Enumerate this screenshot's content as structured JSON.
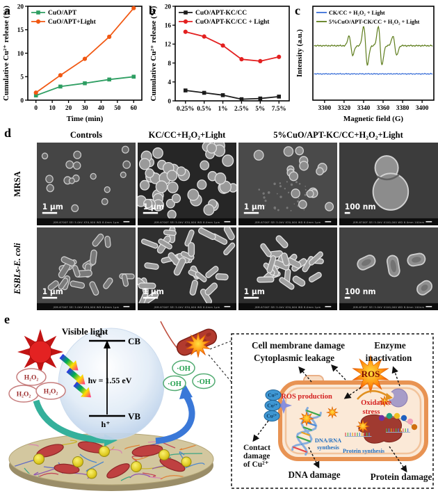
{
  "figure": {
    "panel_labels": {
      "a": "a",
      "b": "b",
      "c": "c",
      "d": "d",
      "e": "e"
    }
  },
  "chart_data": [
    {
      "panel": "a",
      "type": "line",
      "title": "",
      "xlabel": "Time (min)",
      "ylabel": "Cumulative Cu²⁺ release (%)",
      "xlim": [
        -5,
        65
      ],
      "ylim": [
        0,
        20
      ],
      "xticks": [
        0,
        10,
        20,
        30,
        40,
        50,
        60
      ],
      "yticks": [
        0,
        5,
        10,
        15,
        20
      ],
      "legend_position": "top-left",
      "grid": false,
      "series": [
        {
          "name": "CuO/APT",
          "color": "#2e9e62",
          "marker": "square",
          "x": [
            0,
            15,
            30,
            45,
            60
          ],
          "y": [
            1.0,
            2.9,
            3.6,
            4.4,
            5.0
          ]
        },
        {
          "name": "CuO/APT+Light",
          "color": "#f15812",
          "marker": "circle",
          "x": [
            0,
            15,
            30,
            45,
            60
          ],
          "y": [
            1.6,
            5.3,
            8.8,
            13.5,
            19.6
          ]
        }
      ]
    },
    {
      "panel": "b",
      "type": "line",
      "title": "",
      "xlabel": "",
      "ylabel": "Cumulative Cu²⁺ release (%)",
      "categories": [
        "0.25%",
        "0.5%",
        "1%",
        "2.5%",
        "5%",
        "7.5%"
      ],
      "ylim": [
        0,
        20
      ],
      "yticks": [
        0,
        4,
        8,
        12,
        16,
        20
      ],
      "legend_position": "top-left",
      "grid": false,
      "series": [
        {
          "name": "CuO/APT-KC/CC",
          "color": "#1c1c1c",
          "marker": "square",
          "y": [
            2.2,
            1.7,
            1.2,
            0.35,
            0.5,
            0.9
          ]
        },
        {
          "name": "CuO/APT-KC/CC + Light",
          "color": "#e32020",
          "marker": "circle",
          "y": [
            14.6,
            13.6,
            11.7,
            8.8,
            8.4,
            9.3
          ]
        }
      ]
    },
    {
      "panel": "c",
      "type": "line",
      "subtype": "EPR spectrum",
      "title": "",
      "xlabel": "Magnetic field (G)",
      "ylabel": "Intensity (a.u.)",
      "xlim": [
        3288,
        3412
      ],
      "xticks": [
        3300,
        3320,
        3340,
        3360,
        3380,
        3400
      ],
      "legend_position": "top-left",
      "grid": false,
      "series": [
        {
          "name": "CK/CC + H₂O₂ + Light",
          "color": "#3a6fd8",
          "base": 0.72,
          "noise": 0.8,
          "peaks": []
        },
        {
          "name": "5%CuO/APT-CK/CC + H₂O₂ + Light",
          "color": "#5e7d1c",
          "base": 0.42,
          "noise": 1.1,
          "peaks": [
            {
              "c": 3327,
              "a": 0.5
            },
            {
              "c": 3342,
              "a": 1.0
            },
            {
              "c": 3357,
              "a": 1.0
            },
            {
              "c": 3372,
              "a": 0.5
            }
          ]
        }
      ]
    }
  ],
  "panel_d": {
    "column_headers": [
      "Controls",
      "KC/CC+H₂O₂+Light",
      "5%CuO/APT-KC/CC+H₂O₂+Light"
    ],
    "row_labels": [
      "MRSA",
      "ESBLs-E. coli"
    ],
    "panels": [
      {
        "type": "cocci-sparse",
        "bg": "#454545",
        "scale_label": "1 μm",
        "meta": "JSM-6700F SEI 5.0kV X30,000 WD 8.0mm 1μm"
      },
      {
        "type": "cocci-dense",
        "bg": "#262626",
        "scale_label": "1 μm",
        "meta": "JSM-6700F SEI 5.0kV X30,000 WD 8.0mm 1μm"
      },
      {
        "type": "cocci-damaged",
        "bg": "#4a4a4a",
        "scale_label": "1 μm",
        "meta": "JSM-6700F SEI 5.0kV X30,000 WD 8.0mm 1μm"
      },
      {
        "type": "lysed-coccus",
        "bg": "#3c3c3c",
        "scale_label": "100 nm",
        "meta": "JSM-6700F SEI 5.0kV X100,000 WD 8.0mm 100nm"
      },
      {
        "type": "rods-sparse",
        "bg": "#484848",
        "scale_label": "1 μm",
        "meta": "JSM-6700F SEI 5.0kV X30,000 WD 8.0mm 1μm"
      },
      {
        "type": "rods-dense",
        "bg": "#303030",
        "scale_label": "1 μm",
        "meta": "JSM-6700F SEI 5.0kV X30,000 WD 8.0mm 1μm"
      },
      {
        "type": "rods-clumped",
        "bg": "#2e2e2e",
        "scale_label": "1 μm",
        "meta": "JSM-6700F SEI 5.0kV X30,000 WD 8.0mm 1μm"
      },
      {
        "type": "rods-lysed",
        "bg": "#424242",
        "scale_label": "100 nm",
        "meta": "JSM-6700F SEI 5.0kV X100,000 WD 8.0mm 100nm"
      }
    ]
  },
  "panel_e": {
    "visible_light": "Visible light",
    "electron": "e⁻",
    "cb": "CB",
    "hv": "hν = 1.55 eV",
    "vb": "VB",
    "hole": "h⁺",
    "h2o2": "H₂O₂",
    "oh": "·OH",
    "ros": "ROS",
    "cell_membrane_damage": "Cell membrane damage",
    "cytoplasmic_leakage": "Cytoplasmic leakage",
    "enzyme_line1": "Enzyme",
    "enzyme_line2": "inactivation",
    "ros_production": "ROS production",
    "oxidative_line1": "Oxidative",
    "oxidative_line2": "stress",
    "cu": "Cu²⁺",
    "dna_rna_line1": "DNA/RNA",
    "dna_rna_line2": "synthesis",
    "protein_synthesis": "Protein synthesis",
    "contact_line1": "Contact",
    "contact_line2": "damage",
    "contact_line3": "of Cu²⁺",
    "dna_damage": "DNA damage",
    "protein_damage": "Protein damage",
    "colors": {
      "teal_arrow": "#35b09b",
      "blue_arrow": "#3a78d8",
      "ros_orange": "#ff7000",
      "cell_fill": "#fbe9d7",
      "cell_border": "#e89353",
      "sun_red": "#e32222"
    }
  }
}
